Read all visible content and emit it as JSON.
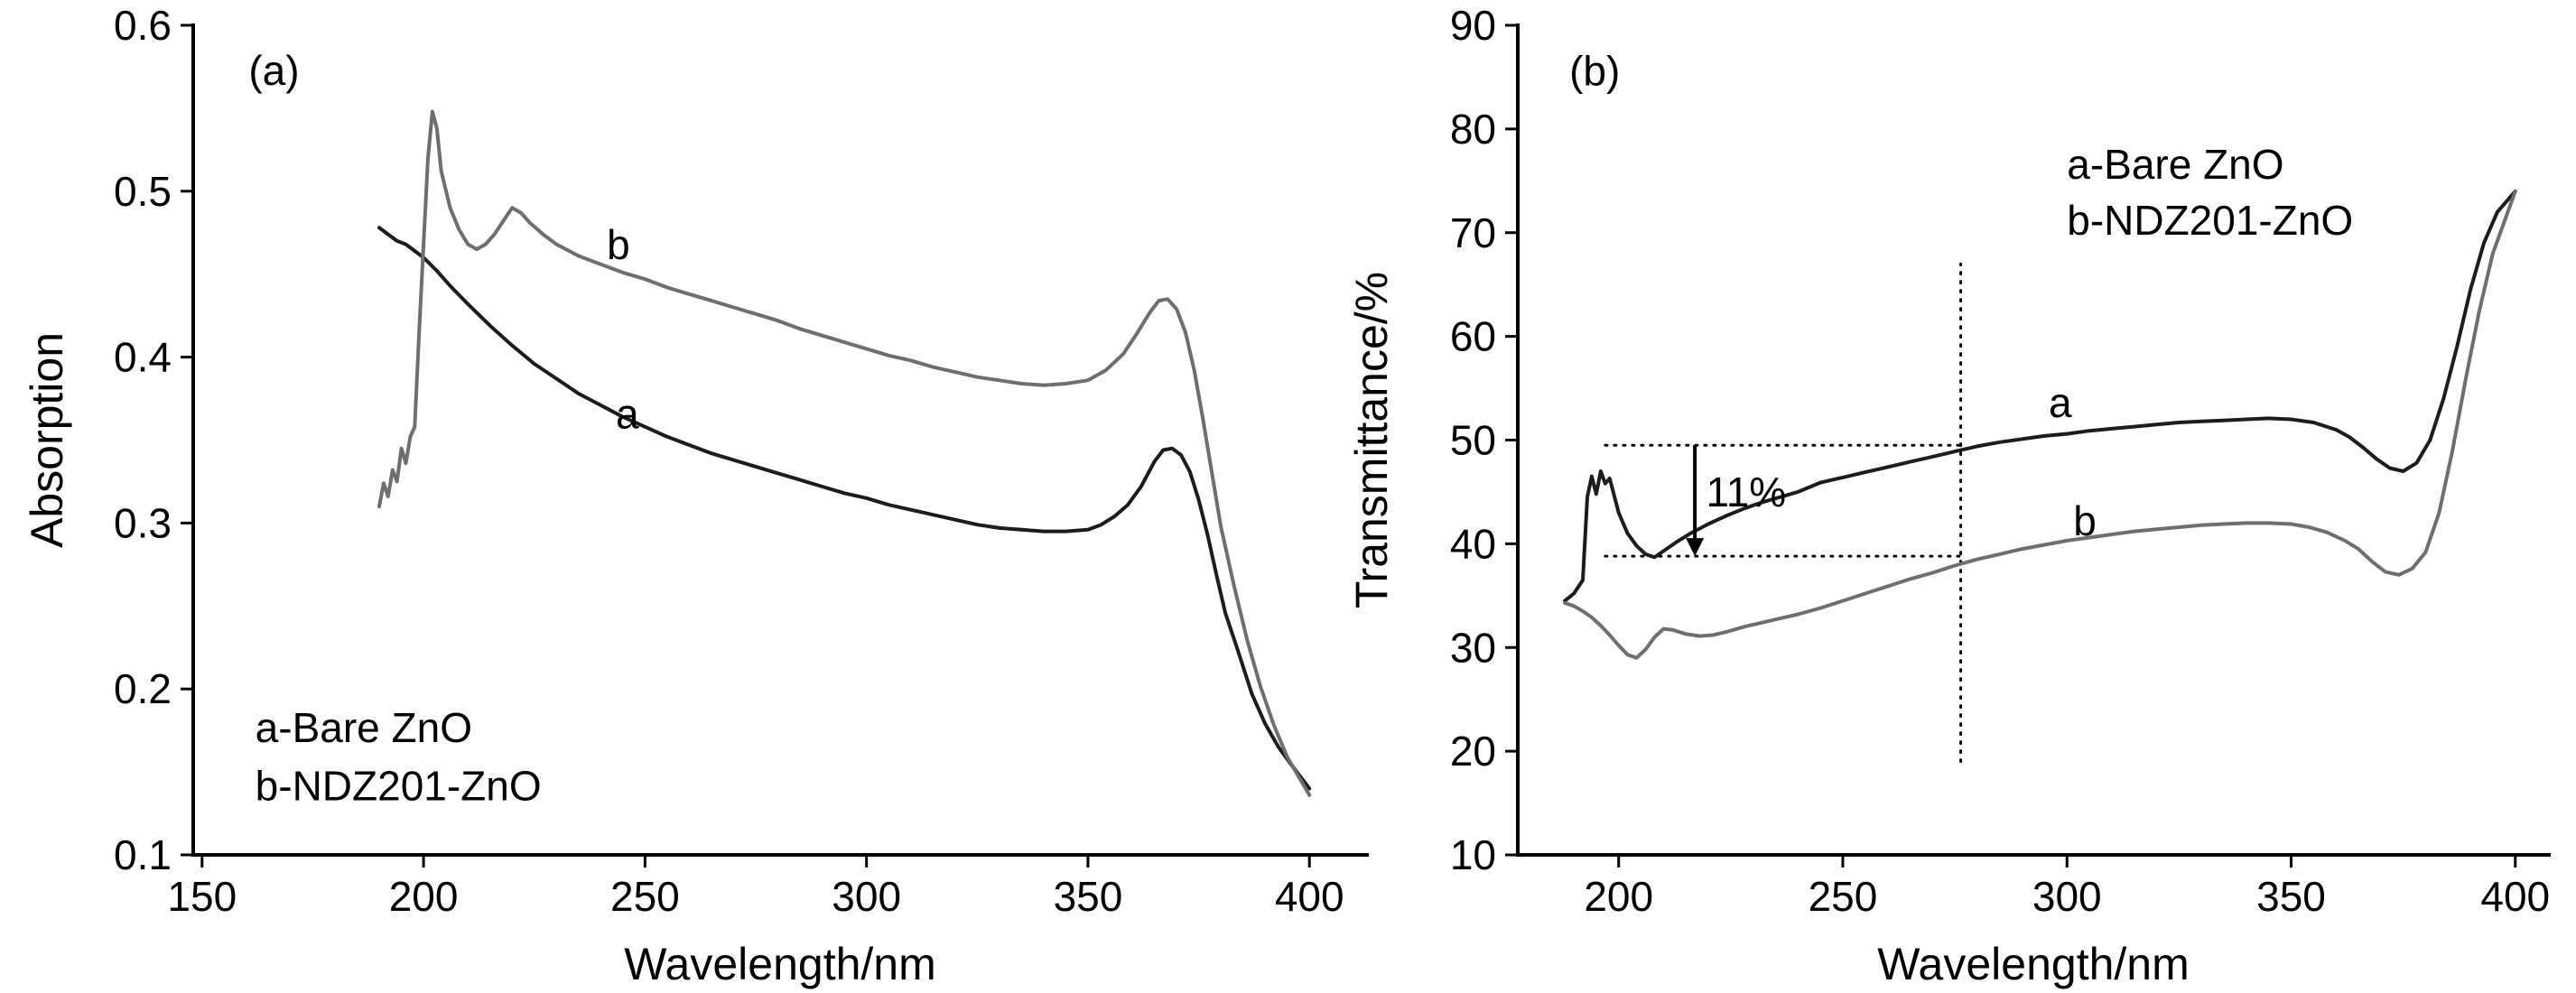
{
  "figure": {
    "background": "#ffffff",
    "text_color": "#000000"
  },
  "chart_data": [
    {
      "id": "a",
      "type": "line",
      "panel_label": {
        "text": "(a)",
        "x": 160.5,
        "y": 0.564
      },
      "xlabel": "Wavelength/nm",
      "ylabel": "Absorption",
      "xlim": [
        148,
        413
      ],
      "ylim": [
        0.1,
        0.6
      ],
      "xticks": [
        150,
        200,
        250,
        300,
        350,
        400
      ],
      "yticks": [
        0.1,
        0.2,
        0.3,
        0.4,
        0.5,
        0.6
      ],
      "ytick_decimals": 1,
      "grid": false,
      "legend": {
        "position": "bottom-left",
        "x": 162,
        "lines": [
          "a-Bare ZnO",
          "b-NDZ201-ZnO"
        ],
        "line_y": [
          0.168,
          0.133
        ]
      },
      "curve_labels": [
        {
          "text": "b",
          "x": 244,
          "y": 0.459
        },
        {
          "text": "a",
          "x": 246,
          "y": 0.357
        }
      ],
      "series": [
        {
          "name": "a-Bare ZnO",
          "color": "#1c1c1c",
          "x": [
            190,
            192,
            194,
            196,
            198,
            200,
            203,
            206,
            210,
            215,
            220,
            225,
            230,
            235,
            240,
            245,
            250,
            255,
            260,
            265,
            270,
            275,
            280,
            285,
            290,
            295,
            300,
            305,
            310,
            315,
            320,
            325,
            330,
            335,
            340,
            345,
            350,
            353,
            356,
            359,
            362,
            365,
            367,
            369,
            371,
            373,
            375,
            377,
            379,
            381,
            384,
            387,
            390,
            393,
            396,
            400
          ],
          "y": [
            0.478,
            0.474,
            0.47,
            0.468,
            0.464,
            0.46,
            0.452,
            0.443,
            0.432,
            0.419,
            0.407,
            0.396,
            0.387,
            0.378,
            0.371,
            0.364,
            0.358,
            0.352,
            0.347,
            0.342,
            0.338,
            0.334,
            0.33,
            0.326,
            0.322,
            0.318,
            0.315,
            0.311,
            0.308,
            0.305,
            0.302,
            0.299,
            0.297,
            0.296,
            0.295,
            0.295,
            0.296,
            0.299,
            0.304,
            0.311,
            0.322,
            0.337,
            0.344,
            0.345,
            0.341,
            0.331,
            0.314,
            0.293,
            0.269,
            0.246,
            0.222,
            0.197,
            0.179,
            0.165,
            0.154,
            0.14
          ]
        },
        {
          "name": "b-NDZ201-ZnO",
          "color": "#6e6e6e",
          "x": [
            190,
            191,
            192,
            193,
            194,
            195,
            196,
            197,
            198,
            199,
            200,
            201,
            202,
            203,
            204,
            206,
            208,
            210,
            212,
            214,
            216,
            218,
            220,
            222,
            224,
            227,
            230,
            235,
            240,
            245,
            250,
            255,
            260,
            265,
            270,
            275,
            280,
            285,
            290,
            295,
            300,
            305,
            310,
            315,
            320,
            325,
            330,
            335,
            340,
            345,
            350,
            354,
            358,
            361,
            364,
            366,
            368,
            370,
            372,
            374,
            376,
            378,
            380,
            383,
            386,
            389,
            392,
            395,
            400
          ],
          "y": [
            0.31,
            0.324,
            0.316,
            0.332,
            0.325,
            0.345,
            0.336,
            0.352,
            0.358,
            0.415,
            0.468,
            0.52,
            0.548,
            0.538,
            0.512,
            0.49,
            0.477,
            0.468,
            0.465,
            0.468,
            0.474,
            0.482,
            0.49,
            0.487,
            0.481,
            0.474,
            0.468,
            0.461,
            0.456,
            0.451,
            0.447,
            0.442,
            0.438,
            0.434,
            0.43,
            0.426,
            0.422,
            0.417,
            0.413,
            0.409,
            0.405,
            0.401,
            0.398,
            0.394,
            0.391,
            0.388,
            0.386,
            0.384,
            0.383,
            0.384,
            0.386,
            0.392,
            0.402,
            0.414,
            0.427,
            0.434,
            0.435,
            0.429,
            0.415,
            0.392,
            0.362,
            0.33,
            0.298,
            0.262,
            0.229,
            0.201,
            0.178,
            0.159,
            0.136
          ]
        }
      ]
    },
    {
      "id": "b",
      "type": "line",
      "panel_label": {
        "text": "(b)",
        "x": 189,
        "y": 84.2
      },
      "xlabel": "Wavelength/nm",
      "ylabel": "Transmittance/%",
      "xlim": [
        177.5,
        407.5
      ],
      "ylim": [
        10,
        90
      ],
      "xticks": [
        200,
        250,
        300,
        350,
        400
      ],
      "yticks": [
        10,
        20,
        30,
        40,
        50,
        60,
        70,
        80,
        90
      ],
      "grid": false,
      "legend": {
        "position": "top-right",
        "x": 300,
        "lines": [
          "a-Bare ZnO",
          "b-NDZ201-ZnO"
        ],
        "line_y": [
          75.2,
          69.8
        ]
      },
      "curve_labels": [
        {
          "text": "a",
          "x": 298.5,
          "y": 52.2
        },
        {
          "text": "b",
          "x": 304,
          "y": 40.8
        }
      ],
      "annotations": {
        "hlines": [
          {
            "y": 49.5,
            "x1": 197,
            "x2": 276.3,
            "style": "dotted"
          },
          {
            "y": 38.8,
            "x1": 197,
            "x2": 276.3,
            "style": "dotted"
          }
        ],
        "vlines": [
          {
            "x": 276.3,
            "y1": 19,
            "y2": 67,
            "style": "dotted"
          }
        ],
        "arrow": {
          "x": 217,
          "y1": 49.5,
          "y2": 38.8,
          "direction": "down"
        },
        "labels": [
          {
            "text": "11%",
            "x": 219.5,
            "y": 43.6
          }
        ]
      },
      "series": [
        {
          "name": "a-Bare ZnO",
          "color": "#1c1c1c",
          "x": [
            188,
            190,
            192,
            193,
            194,
            195,
            196,
            197,
            198,
            200,
            202,
            204,
            206,
            208,
            210,
            213,
            216,
            220,
            224,
            228,
            232,
            236,
            240,
            245,
            250,
            255,
            260,
            265,
            270,
            275,
            280,
            285,
            290,
            295,
            300,
            305,
            310,
            315,
            320,
            325,
            330,
            335,
            340,
            345,
            350,
            355,
            360,
            363,
            366,
            369,
            372,
            375,
            378,
            381,
            384,
            387,
            390,
            393,
            396,
            400
          ],
          "y": [
            34.5,
            35.2,
            36.5,
            44.5,
            46.5,
            44.8,
            47.0,
            45.8,
            46.3,
            43.0,
            41.0,
            39.8,
            39.0,
            38.7,
            39.3,
            40.2,
            41.0,
            41.9,
            42.7,
            43.4,
            44.0,
            44.5,
            45.0,
            45.9,
            46.4,
            46.9,
            47.4,
            47.9,
            48.4,
            48.9,
            49.4,
            49.8,
            50.1,
            50.4,
            50.6,
            50.9,
            51.1,
            51.3,
            51.5,
            51.7,
            51.8,
            51.9,
            52.0,
            52.1,
            52.0,
            51.7,
            51.0,
            50.3,
            49.3,
            48.2,
            47.3,
            47.0,
            47.8,
            50.0,
            54.0,
            59.0,
            64.5,
            69.0,
            72.0,
            74.0
          ]
        },
        {
          "name": "b-NDZ201-ZnO",
          "color": "#6e6e6e",
          "x": [
            188,
            190,
            192,
            194,
            196,
            198,
            200,
            202,
            204,
            206,
            208,
            210,
            212,
            215,
            218,
            221,
            224,
            228,
            232,
            236,
            240,
            245,
            250,
            255,
            260,
            265,
            270,
            275,
            280,
            285,
            290,
            295,
            300,
            305,
            310,
            315,
            320,
            325,
            330,
            335,
            340,
            345,
            350,
            354,
            358,
            362,
            365,
            368,
            371,
            374,
            377,
            380,
            383,
            386,
            389,
            392,
            395,
            400
          ],
          "y": [
            34.3,
            34.0,
            33.5,
            32.9,
            32.1,
            31.2,
            30.2,
            29.3,
            29.0,
            29.8,
            31.0,
            31.8,
            31.7,
            31.3,
            31.1,
            31.2,
            31.5,
            32.0,
            32.4,
            32.8,
            33.2,
            33.8,
            34.5,
            35.2,
            35.9,
            36.6,
            37.2,
            37.9,
            38.5,
            39.0,
            39.5,
            39.9,
            40.3,
            40.6,
            40.9,
            41.2,
            41.4,
            41.6,
            41.8,
            41.9,
            42.0,
            42.0,
            41.9,
            41.6,
            41.1,
            40.3,
            39.5,
            38.3,
            37.3,
            37.0,
            37.6,
            39.2,
            43.0,
            49.0,
            56.0,
            62.5,
            68.0,
            74.0
          ]
        }
      ]
    }
  ]
}
